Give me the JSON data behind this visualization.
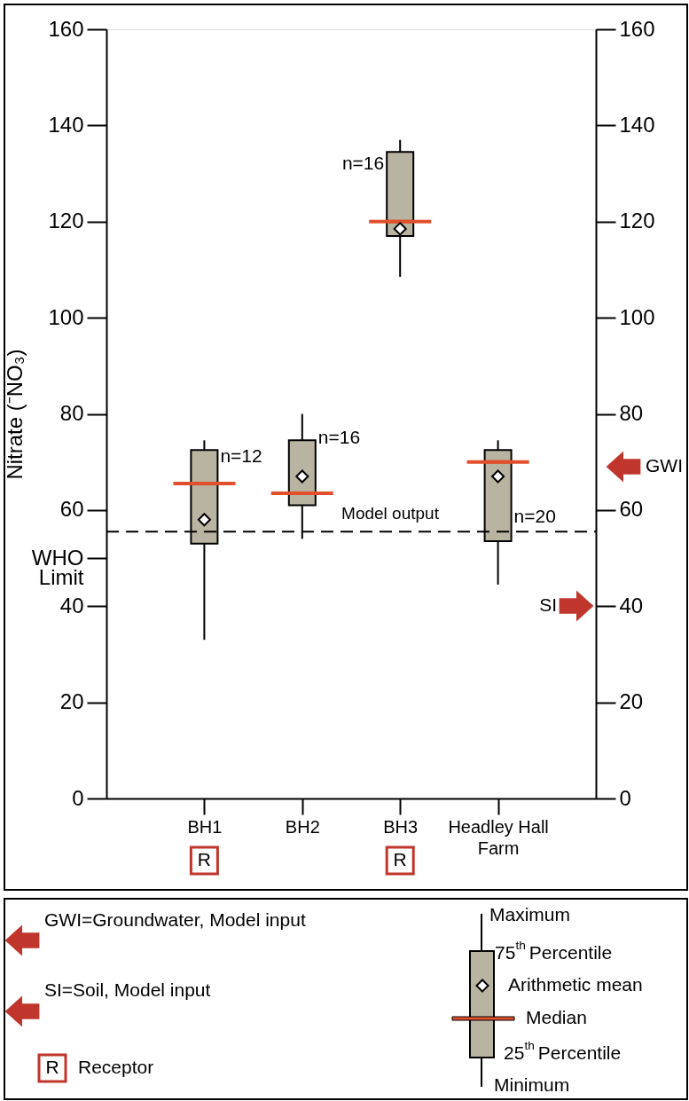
{
  "chart_data": {
    "type": "box",
    "ylabel": "Nitrate (⁻NO₃)",
    "categories": [
      "BH1",
      "BH2",
      "BH3",
      "Headley Hall\nFarm"
    ],
    "series": [
      {
        "color": "#b9b3a2",
        "boxes": [
          {
            "low": 33,
            "q1": 53,
            "median": 65.5,
            "q3": 72.5,
            "high": 74.5,
            "mean": 58
          },
          {
            "low": 54,
            "q1": 61,
            "median": 63.5,
            "q3": 74.5,
            "high": 80,
            "mean": 67
          },
          {
            "low": 108.5,
            "q1": 117,
            "median": 120,
            "q3": 134.5,
            "high": 137,
            "mean": 118.5
          },
          {
            "low": 44.5,
            "q1": 53.5,
            "median": 70,
            "q3": 72.5,
            "high": 74.5,
            "mean": 67
          }
        ]
      }
    ],
    "ylim": [
      0,
      160
    ],
    "yticks": [
      0,
      20,
      40,
      {
        "value": 50,
        "label": "WHO\nLimit"
      },
      60,
      80,
      100,
      120,
      140,
      160
    ],
    "y2lim": [
      0,
      160
    ],
    "y2ticks": [
      0,
      20,
      40,
      60,
      80,
      100,
      120,
      140,
      160
    ],
    "ref_lines": [
      {
        "axis": "y",
        "value": 55.5,
        "label": "Model output",
        "line_style": "dashed"
      }
    ],
    "grid": false,
    "legend": false,
    "annotations": [
      {
        "text": "n=12",
        "x": "BH1",
        "y": 71
      },
      {
        "text": "n=16",
        "x": "BH2",
        "y": 75
      },
      {
        "text": "n=16",
        "x": "BH3",
        "y": 132
      },
      {
        "text": "n=20",
        "x": "Headley Hall\nFarm",
        "y": 58.5
      },
      "GWI",
      "SI",
      "R",
      "R",
      "GWI=Groundwater, Model input",
      "SI=Soil, Model input",
      "R",
      "Receptor",
      "Maximum",
      "75$^{th}$ Percentile",
      "Arithmetic mean",
      "Median",
      "25$^{th}$ Percentile",
      "Minimum"
    ]
  }
}
